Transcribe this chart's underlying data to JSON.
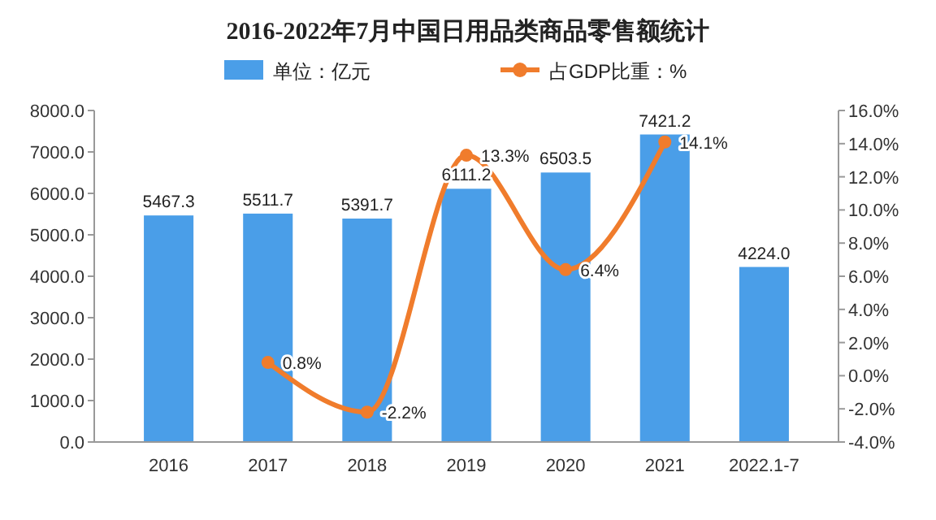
{
  "chart_data": {
    "type": "bar",
    "title": "2016-2022年7月中国日用品类商品零售额统计",
    "categories": [
      "2016",
      "2017",
      "2018",
      "2019",
      "2020",
      "2021",
      "2022.1-7"
    ],
    "series": [
      {
        "name": "单位：亿元",
        "color": "#4a9ee8",
        "values": [
          5467.3,
          5511.7,
          5391.7,
          6111.2,
          6503.5,
          7421.2,
          4224.0
        ],
        "value_labels": [
          "5467.3",
          "5511.7",
          "5391.7",
          "6111.2",
          "6503.5",
          "7421.2",
          "4224.0"
        ]
      },
      {
        "name": "占GDP比重：%",
        "type": "line",
        "axis": "y2",
        "color": "#f07c2c",
        "marker": "circle",
        "values": [
          null,
          0.8,
          -2.2,
          13.3,
          6.4,
          14.1,
          null
        ],
        "value_labels": [
          null,
          "0.8%",
          "-2.2%",
          "13.3%",
          "6.4%",
          "14.1%",
          null
        ]
      }
    ],
    "ylim": [
      0,
      8000
    ],
    "yticks": [
      {
        "value": 0,
        "label": "0.0"
      },
      {
        "value": 1000,
        "label": "1000.0"
      },
      {
        "value": 2000,
        "label": "2000.0"
      },
      {
        "value": 3000,
        "label": "3000.0"
      },
      {
        "value": 4000,
        "label": "4000.0"
      },
      {
        "value": 5000,
        "label": "5000.0"
      },
      {
        "value": 6000,
        "label": "6000.0"
      },
      {
        "value": 7000,
        "label": "7000.0"
      },
      {
        "value": 8000,
        "label": "8000.0"
      }
    ],
    "y2lim": [
      -4,
      16
    ],
    "y2ticks": [
      {
        "value": -4,
        "label": "-4.0%"
      },
      {
        "value": -2,
        "label": "-2.0%"
      },
      {
        "value": 0,
        "label": "0.0%"
      },
      {
        "value": 2,
        "label": "2.0%"
      },
      {
        "value": 4,
        "label": "4.0%"
      },
      {
        "value": 6,
        "label": "6.0%"
      },
      {
        "value": 8,
        "label": "8.0%"
      },
      {
        "value": 10,
        "label": "10.0%"
      },
      {
        "value": 12,
        "label": "12.0%"
      },
      {
        "value": 14,
        "label": "14.0%"
      },
      {
        "value": 16,
        "label": "16.0%"
      }
    ],
    "legend": "top"
  }
}
